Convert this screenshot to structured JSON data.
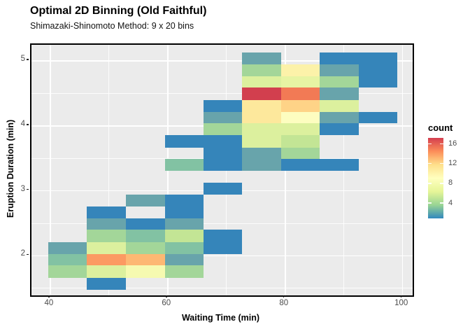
{
  "colors": {
    "panel_bg": "#EBEBEB",
    "grid": "#FFFFFF",
    "axis_text": "#4D4D4D",
    "title_text": "#000000",
    "panel_border": "#000000"
  },
  "chart_data": {
    "type": "heatmap",
    "title": "Optimal 2D Binning (Old Faithful)",
    "subtitle": "Shimazaki-Shinomoto Method: 9 x 20 bins",
    "xlabel": "Waiting Time (min)",
    "ylabel": "Eruption Duration (min)",
    "grid": true,
    "x_ticks": [
      40,
      60,
      80,
      100
    ],
    "y_ticks": [
      2,
      3,
      4,
      5
    ],
    "x_minor_ticks": [
      50,
      70,
      90
    ],
    "y_minor_ticks": [
      1.5,
      2.5,
      3.5,
      4.5
    ],
    "x_range": [
      36.8,
      101.7
    ],
    "y_range": [
      1.39,
      5.25
    ],
    "n_x_bins": 9,
    "n_y_bins": 20,
    "x_bin_edges": [
      39.6,
      46.2,
      52.9,
      59.5,
      66.1,
      72.7,
      79.3,
      85.9,
      92.5,
      99.1
    ],
    "y_bin_edges": [
      1.48,
      1.66,
      1.85,
      2.03,
      2.21,
      2.4,
      2.58,
      2.76,
      2.94,
      3.13,
      3.31,
      3.49,
      3.67,
      3.86,
      4.04,
      4.22,
      4.4,
      4.59,
      4.77,
      4.95,
      5.13
    ],
    "legend": {
      "title": "count",
      "position": "right",
      "ticks": [
        4,
        8,
        12,
        16
      ],
      "value_range": [
        0.9,
        17.2
      ],
      "gradient_stops_bottom_to_top": [
        "#3288BD",
        "#99D594",
        "#E6F598",
        "#FFFFBF",
        "#FEE08B",
        "#FC8D59",
        "#D53E4F"
      ]
    },
    "count_palette": {
      "1": "#3585BA",
      "2": "#68A4AB",
      "3": "#82C2A3",
      "4": "#A3D699",
      "5": "#C3E595",
      "6": "#DCF09E",
      "7": "#E7F4A3",
      "8": "#F6FAB0",
      "9": "#FDFDC0",
      "10": "#FCF2A9",
      "11": "#FDE89C",
      "12": "#FED387",
      "13": "#FDB873",
      "14": "#FC9A62",
      "15": "#F27A55",
      "17": "#D23F4E"
    },
    "cells_note": "r = row index from top (r0 = duration bin 4.95-5.13), c = column index from left (c0 = waiting bin 39.6-46.2), n = count",
    "cells": [
      {
        "r": 0,
        "c": 5,
        "n": 2
      },
      {
        "r": 0,
        "c": 7,
        "n": 1
      },
      {
        "r": 0,
        "c": 8,
        "n": 1
      },
      {
        "r": 1,
        "c": 5,
        "n": 4
      },
      {
        "r": 1,
        "c": 6,
        "n": 10
      },
      {
        "r": 1,
        "c": 7,
        "n": 2
      },
      {
        "r": 1,
        "c": 8,
        "n": 1
      },
      {
        "r": 2,
        "c": 5,
        "n": 6
      },
      {
        "r": 2,
        "c": 6,
        "n": 7
      },
      {
        "r": 2,
        "c": 7,
        "n": 4
      },
      {
        "r": 2,
        "c": 8,
        "n": 1
      },
      {
        "r": 3,
        "c": 5,
        "n": 17
      },
      {
        "r": 3,
        "c": 6,
        "n": 15
      },
      {
        "r": 3,
        "c": 7,
        "n": 2
      },
      {
        "r": 4,
        "c": 4,
        "n": 1
      },
      {
        "r": 4,
        "c": 5,
        "n": 11
      },
      {
        "r": 4,
        "c": 6,
        "n": 12
      },
      {
        "r": 4,
        "c": 7,
        "n": 6
      },
      {
        "r": 5,
        "c": 4,
        "n": 2
      },
      {
        "r": 5,
        "c": 5,
        "n": 11
      },
      {
        "r": 5,
        "c": 6,
        "n": 9
      },
      {
        "r": 5,
        "c": 7,
        "n": 2
      },
      {
        "r": 5,
        "c": 8,
        "n": 1
      },
      {
        "r": 6,
        "c": 4,
        "n": 4
      },
      {
        "r": 6,
        "c": 5,
        "n": 6
      },
      {
        "r": 6,
        "c": 6,
        "n": 6
      },
      {
        "r": 6,
        "c": 7,
        "n": 1
      },
      {
        "r": 7,
        "c": 3,
        "n": 1
      },
      {
        "r": 7,
        "c": 4,
        "n": 1
      },
      {
        "r": 7,
        "c": 5,
        "n": 6
      },
      {
        "r": 7,
        "c": 6,
        "n": 5
      },
      {
        "r": 8,
        "c": 4,
        "n": 1
      },
      {
        "r": 8,
        "c": 5,
        "n": 2
      },
      {
        "r": 8,
        "c": 6,
        "n": 4
      },
      {
        "r": 9,
        "c": 3,
        "n": 3
      },
      {
        "r": 9,
        "c": 4,
        "n": 1
      },
      {
        "r": 9,
        "c": 5,
        "n": 2
      },
      {
        "r": 9,
        "c": 6,
        "n": 1
      },
      {
        "r": 9,
        "c": 7,
        "n": 1
      },
      {
        "r": 11,
        "c": 4,
        "n": 1
      },
      {
        "r": 12,
        "c": 2,
        "n": 2
      },
      {
        "r": 12,
        "c": 3,
        "n": 1
      },
      {
        "r": 13,
        "c": 1,
        "n": 1
      },
      {
        "r": 13,
        "c": 3,
        "n": 1
      },
      {
        "r": 14,
        "c": 1,
        "n": 2
      },
      {
        "r": 14,
        "c": 2,
        "n": 1
      },
      {
        "r": 14,
        "c": 3,
        "n": 2
      },
      {
        "r": 15,
        "c": 1,
        "n": 4
      },
      {
        "r": 15,
        "c": 2,
        "n": 3
      },
      {
        "r": 15,
        "c": 3,
        "n": 5
      },
      {
        "r": 15,
        "c": 4,
        "n": 1
      },
      {
        "r": 16,
        "c": 0,
        "n": 2
      },
      {
        "r": 16,
        "c": 1,
        "n": 6
      },
      {
        "r": 16,
        "c": 2,
        "n": 4
      },
      {
        "r": 16,
        "c": 3,
        "n": 3
      },
      {
        "r": 16,
        "c": 4,
        "n": 1
      },
      {
        "r": 17,
        "c": 0,
        "n": 3
      },
      {
        "r": 17,
        "c": 1,
        "n": 14
      },
      {
        "r": 17,
        "c": 2,
        "n": 13
      },
      {
        "r": 17,
        "c": 3,
        "n": 2
      },
      {
        "r": 18,
        "c": 0,
        "n": 4
      },
      {
        "r": 18,
        "c": 1,
        "n": 6
      },
      {
        "r": 18,
        "c": 2,
        "n": 8
      },
      {
        "r": 18,
        "c": 3,
        "n": 4
      },
      {
        "r": 19,
        "c": 1,
        "n": 1
      }
    ]
  }
}
